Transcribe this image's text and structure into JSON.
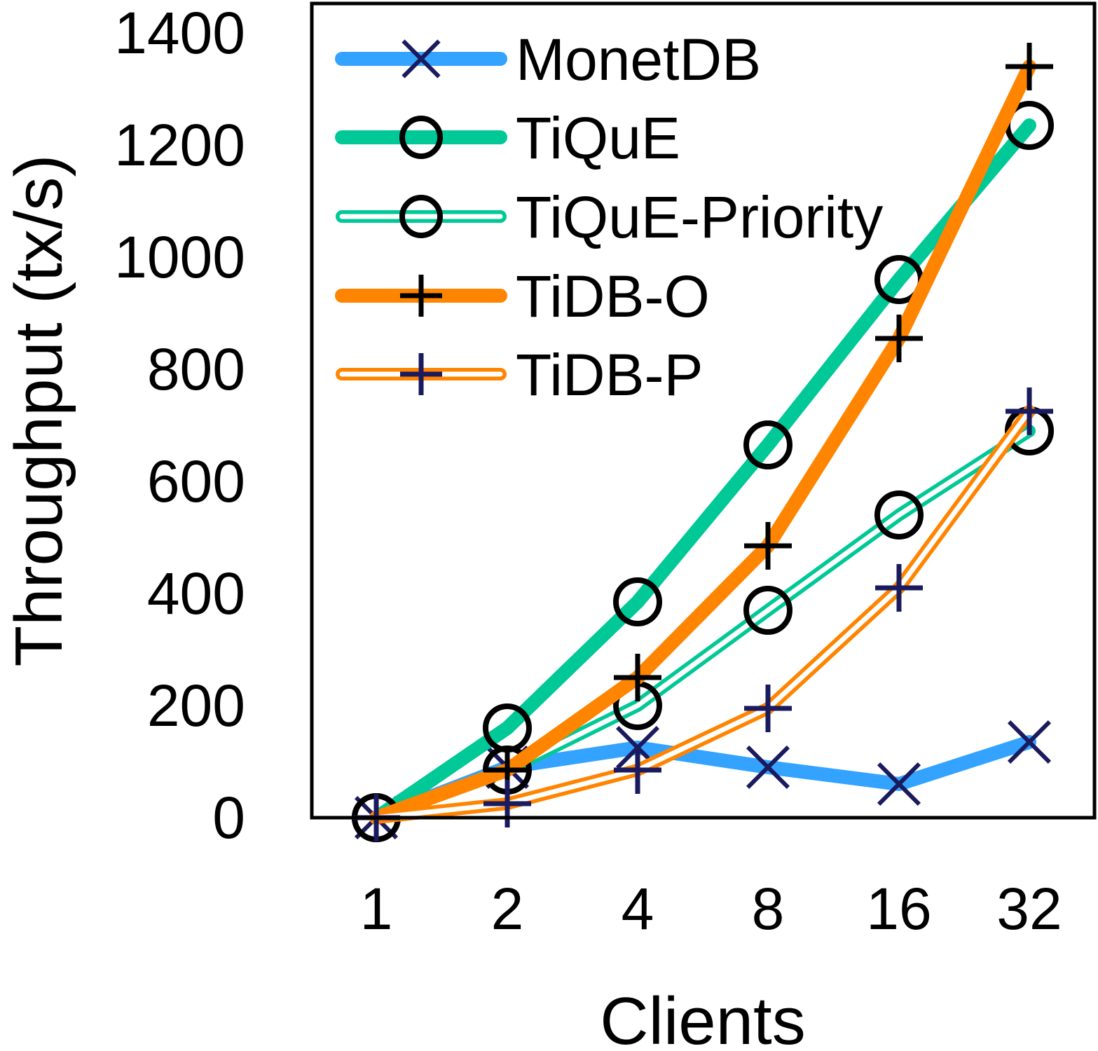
{
  "chart_data": {
    "type": "line",
    "title": "",
    "xlabel": "Clients",
    "ylabel": "Throughput (tx/s)",
    "categories": [
      "1",
      "2",
      "4",
      "8",
      "16",
      "32"
    ],
    "ylim": [
      0,
      1400
    ],
    "yticks": [
      0,
      200,
      400,
      600,
      800,
      1000,
      1200,
      1400
    ],
    "grid": false,
    "legend_position": "top-left",
    "series": [
      {
        "name": "MonetDB",
        "values": [
          0,
          90,
          125,
          90,
          60,
          135
        ],
        "color": "#33a3ff",
        "style": "solid-thick",
        "marker": "x",
        "marker_color": "#1a1a5e"
      },
      {
        "name": "TiQuE",
        "values": [
          0,
          160,
          385,
          665,
          960,
          1235
        ],
        "color": "#00c896",
        "style": "solid-thick",
        "marker": "circle",
        "marker_color": "#000000"
      },
      {
        "name": "TiQuE-Priority",
        "values": [
          0,
          85,
          200,
          370,
          540,
          690
        ],
        "color": "#00c896",
        "style": "double",
        "marker": "circle",
        "marker_color": "#000000"
      },
      {
        "name": "TiDB-O",
        "values": [
          0,
          85,
          250,
          485,
          855,
          1340
        ],
        "color": "#ff8400",
        "style": "solid-thick",
        "marker": "plus",
        "marker_color": "#000000"
      },
      {
        "name": "TiDB-P",
        "values": [
          0,
          25,
          85,
          195,
          410,
          725
        ],
        "color": "#ff8400",
        "style": "double",
        "marker": "plus",
        "marker_color": "#1a1a5e"
      }
    ]
  }
}
